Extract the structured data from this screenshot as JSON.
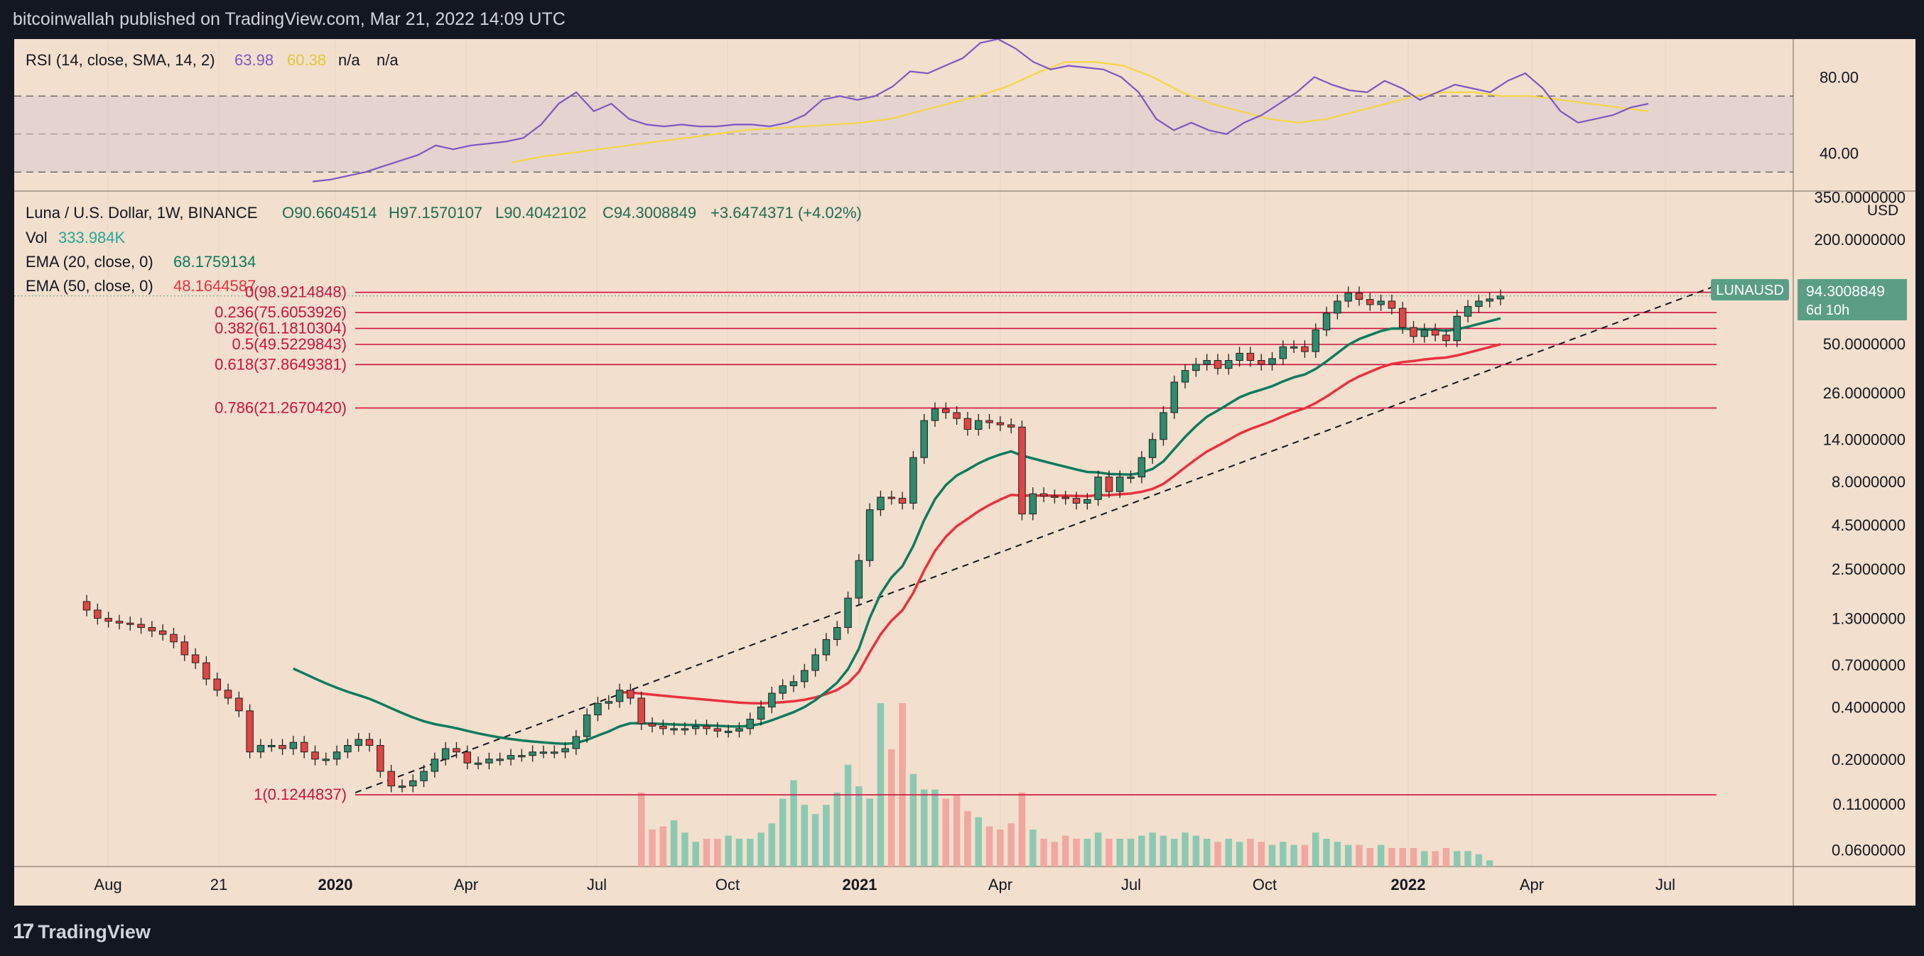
{
  "header": {
    "publisher": "bitcoinwallah published on TradingView.com, Mar 21, 2022 14:09 UTC"
  },
  "footer": {
    "brand": "TradingView",
    "brand_icon": "tradingview-logo-icon"
  },
  "colors": {
    "background": "#f2dfcd",
    "frame": "#131722",
    "up": "#2e8b6e",
    "down": "#e04545",
    "ema20": "#0e7a5e",
    "ema50": "#e8323e",
    "rsi": "#7e57c2",
    "rsi_sma": "#f5d547",
    "fib": "#d0103e",
    "vol_up": "#8cc9b3",
    "vol_down": "#f0a8a0",
    "price_tag": "#5b9e86"
  },
  "rsi_legend": {
    "label": "RSI (14, close, SMA, 14, 2)",
    "value": "63.98",
    "sma": "60.38",
    "na1": "n/a",
    "na2": "n/a"
  },
  "price_legend": {
    "symbol": "Luna / U.S. Dollar, 1W, BINANCE",
    "open": "O90.6604514",
    "high": "H97.1570107",
    "low": "L90.4042102",
    "close": "C94.3008849",
    "change": "+3.6474371 (+4.02%)"
  },
  "vol_legend": {
    "label": "Vol",
    "value": "333.984K"
  },
  "ema20_legend": {
    "label": "EMA (20, close, 0)",
    "value": "68.1759134"
  },
  "ema50_legend": {
    "label": "EMA (50, close, 0)",
    "value": "48.1644587"
  },
  "price_tag": {
    "symbol": "LUNAUSD",
    "value": "94.3008849",
    "countdown": "6d 10h"
  },
  "currency": "USD",
  "chart_data": {
    "type": "candlestick",
    "title": "Luna / U.S. Dollar, 1W, BINANCE",
    "y_scale": "log",
    "ylim": [
      0.048,
      380
    ],
    "x_labels": [
      "Aug",
      "21",
      "2020",
      "Apr",
      "Jul",
      "Oct",
      "2021",
      "Apr",
      "Jul",
      "Oct",
      "2022",
      "Apr",
      "Jul"
    ],
    "y_labels": [
      "350.0000000",
      "200.0000000",
      "94.3008849",
      "50.0000000",
      "26.0000000",
      "14.0000000",
      "8.0000000",
      "4.5000000",
      "2.5000000",
      "1.3000000",
      "0.7000000",
      "0.4000000",
      "0.2000000",
      "0.1100000",
      "0.0600000"
    ],
    "fib_levels": [
      {
        "label": "0(98.9214848)",
        "value": 98.9214848
      },
      {
        "label": "0.236(75.6053926)",
        "value": 75.6053926
      },
      {
        "label": "0.382(61.1810304)",
        "value": 61.1810304
      },
      {
        "label": "0.5(49.5229843)",
        "value": 49.5229843
      },
      {
        "label": "0.618(37.8649381)",
        "value": 37.8649381
      },
      {
        "label": "0.786(21.2670420)",
        "value": 21.267042
      },
      {
        "label": "1(0.1244837)",
        "value": 0.1244837
      }
    ],
    "close_values": [
      1.45,
      1.3,
      1.25,
      1.22,
      1.2,
      1.15,
      1.1,
      1.05,
      0.95,
      0.8,
      0.72,
      0.58,
      0.5,
      0.45,
      0.38,
      0.22,
      0.24,
      0.24,
      0.23,
      0.25,
      0.22,
      0.2,
      0.2,
      0.22,
      0.24,
      0.26,
      0.24,
      0.17,
      0.14,
      0.14,
      0.15,
      0.17,
      0.2,
      0.23,
      0.22,
      0.19,
      0.19,
      0.2,
      0.2,
      0.21,
      0.21,
      0.22,
      0.22,
      0.22,
      0.23,
      0.27,
      0.36,
      0.42,
      0.43,
      0.5,
      0.45,
      0.32,
      0.31,
      0.3,
      0.3,
      0.3,
      0.31,
      0.3,
      0.29,
      0.29,
      0.3,
      0.34,
      0.4,
      0.48,
      0.53,
      0.56,
      0.65,
      0.8,
      0.98,
      1.15,
      1.7,
      2.8,
      5.5,
      6.5,
      6.4,
      6.0,
      11.0,
      18.0,
      21.0,
      20.0,
      18.5,
      16.0,
      18.0,
      17.5,
      17.0,
      16.5,
      5.2,
      6.8,
      6.6,
      6.5,
      6.4,
      6.0,
      6.3,
      8.5,
      7.0,
      8.5,
      8.5,
      11.0,
      14.0,
      20.0,
      30.0,
      35.0,
      38.0,
      40.0,
      36.0,
      40.0,
      44.0,
      40.0,
      38.0,
      41.0,
      48.0,
      48.0,
      45.0,
      60.0,
      75.0,
      88.0,
      98.0,
      90.0,
      84.0,
      88.0,
      80.0,
      62.0,
      55.0,
      60.0,
      56.0,
      52.0,
      72.0,
      82.0,
      88.0,
      90.6,
      94.3
    ],
    "ema20": "EMA (20, close, 0) 68.1759134",
    "ema50": "EMA (50, close, 0) 48.1644587",
    "rsi_ylim": [
      20,
      100
    ],
    "rsi_y_labels": [
      "80.00",
      "40.00"
    ],
    "rsi_band": [
      30,
      70
    ],
    "rsi_values": [
      25,
      26,
      28,
      30,
      33,
      36,
      39,
      44,
      42,
      44,
      45,
      46,
      48,
      55,
      66,
      72,
      62,
      66,
      58,
      55,
      54,
      55,
      54,
      54,
      55,
      55,
      54,
      56,
      60,
      68,
      70,
      68,
      70,
      75,
      83,
      82,
      86,
      90,
      98,
      100,
      95,
      88,
      84,
      86,
      85,
      84,
      80,
      72,
      58,
      52,
      56,
      52,
      50,
      56,
      60,
      66,
      72,
      80,
      76,
      73,
      72,
      78,
      74,
      68,
      72,
      76,
      74,
      72,
      78,
      82,
      74,
      62,
      56,
      58,
      60,
      64,
      66
    ],
    "rsi_sma_values": [
      35,
      38,
      40,
      42,
      44,
      46,
      48,
      50,
      52,
      53,
      54,
      55,
      56,
      58,
      62,
      66,
      70,
      75,
      82,
      88,
      88,
      86,
      80,
      72,
      66,
      62,
      58,
      56,
      58,
      62,
      66,
      70,
      72,
      72,
      70,
      70,
      68,
      66,
      64,
      62
    ],
    "volume": [
      0,
      0,
      0,
      0,
      0,
      0,
      0,
      0,
      0,
      0,
      0,
      0,
      0,
      0,
      0,
      0,
      0,
      0,
      0,
      0,
      0,
      0,
      0,
      0,
      0,
      0,
      0,
      0,
      0,
      0,
      0,
      0,
      0,
      0,
      0,
      0,
      0,
      0,
      0,
      0,
      0,
      0,
      0,
      0,
      0,
      0,
      0,
      0,
      0,
      0,
      0,
      24,
      12,
      13,
      15,
      11,
      8,
      9,
      9,
      10,
      9,
      9,
      11,
      14,
      22,
      28,
      20,
      17,
      20,
      24,
      33,
      26,
      22,
      53,
      38,
      53,
      30,
      25,
      25,
      22,
      23,
      18,
      16,
      13,
      12,
      14,
      24,
      12,
      9,
      8,
      10,
      9,
      9,
      11,
      9,
      9,
      9,
      10,
      11,
      10,
      9,
      11,
      10,
      9,
      8,
      9,
      8,
      9,
      8,
      7,
      8,
      7,
      7,
      11,
      9,
      8,
      7,
      7,
      6,
      7,
      6,
      6,
      6,
      5,
      5,
      6,
      5,
      5,
      4,
      2
    ]
  }
}
